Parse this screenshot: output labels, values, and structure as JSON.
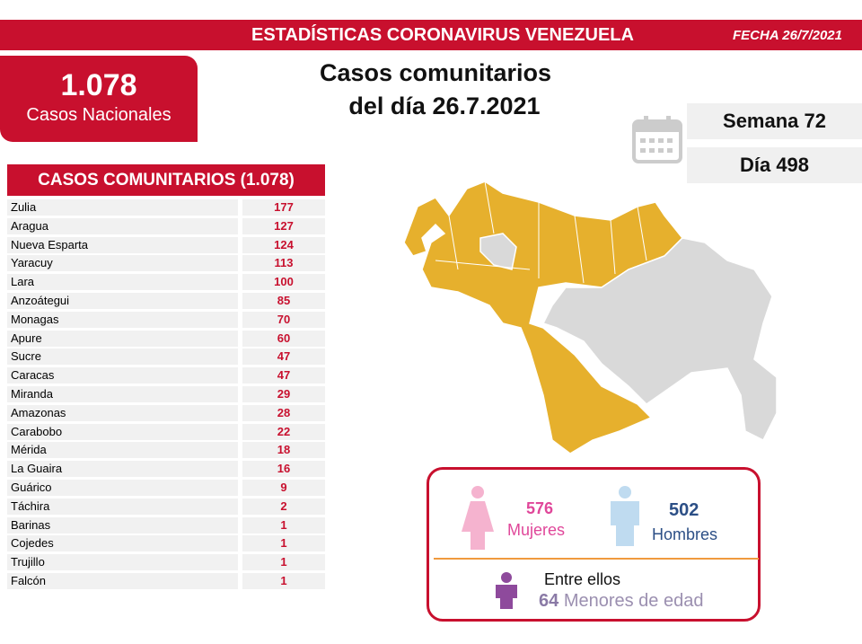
{
  "header": {
    "title": "ESTADÍSTICAS CORONAVIRUS VENEZUELA",
    "date": "FECHA 26/7/2021"
  },
  "total": {
    "value": "1.078",
    "label": "Casos Nacionales"
  },
  "heading": {
    "line1": "Casos comunitarios",
    "line2": "del día 26.7.2021"
  },
  "calendar": {
    "week": "Semana 72",
    "day": "Día 498"
  },
  "table": {
    "title": "CASOS COMUNITARIOS (1.078)",
    "rows": [
      [
        "Zulia",
        "177"
      ],
      [
        "Aragua",
        "127"
      ],
      [
        "Nueva Esparta",
        "124"
      ],
      [
        "Yaracuy",
        "113"
      ],
      [
        "Lara",
        "100"
      ],
      [
        "Anzoátegui",
        "85"
      ],
      [
        "Monagas",
        "70"
      ],
      [
        "Apure",
        "60"
      ],
      [
        "Sucre",
        "47"
      ],
      [
        "Caracas",
        "47"
      ],
      [
        "Miranda",
        "29"
      ],
      [
        "Amazonas",
        "28"
      ],
      [
        "Carabobo",
        "22"
      ],
      [
        "Mérida",
        "18"
      ],
      [
        "La Guaira",
        "16"
      ],
      [
        "Guárico",
        "9"
      ],
      [
        "Táchira",
        "2"
      ],
      [
        "Barinas",
        "1"
      ],
      [
        "Cojedes",
        "1"
      ],
      [
        "Trujillo",
        "1"
      ],
      [
        "Falcón",
        "1"
      ]
    ]
  },
  "gender": {
    "women_count": "576",
    "women_label": "Mujeres",
    "men_count": "502",
    "men_label": "Hombres",
    "minors_intro": "Entre ellos",
    "minors_count": "64",
    "minors_label": "Menores de edad"
  }
}
